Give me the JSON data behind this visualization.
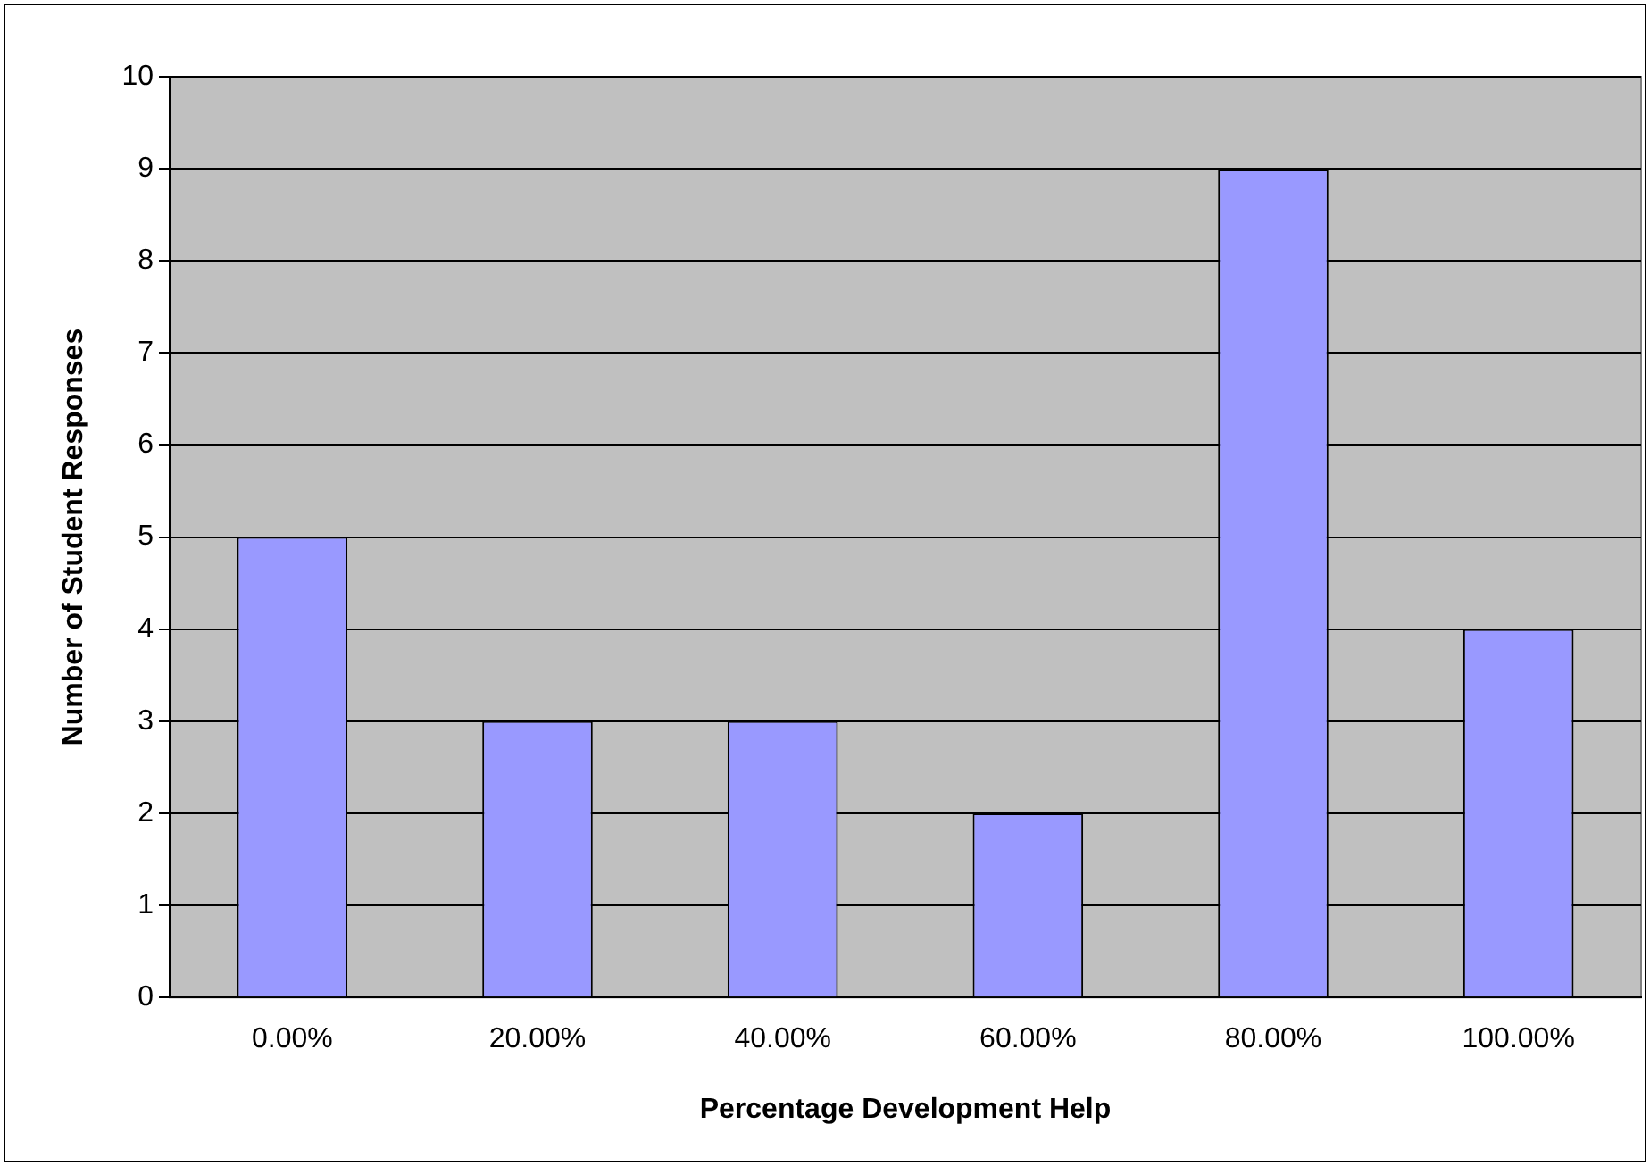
{
  "chart_data": {
    "type": "bar",
    "xlabel": "Percentage Development Help",
    "ylabel": "Number of Student Responses",
    "categories": [
      "0.00%",
      "20.00%",
      "40.00%",
      "60.00%",
      "80.00%",
      "100.00%"
    ],
    "values": [
      5,
      3,
      3,
      2,
      9,
      4
    ],
    "color": "#9999ff",
    "ylim": [
      0,
      10
    ],
    "yticks": [
      0,
      1,
      2,
      3,
      4,
      5,
      6,
      7,
      8,
      9,
      10
    ],
    "grid": "y",
    "legend": false
  }
}
